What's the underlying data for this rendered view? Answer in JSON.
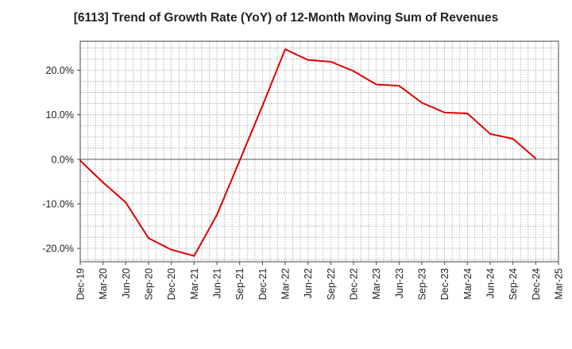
{
  "chart_data": {
    "type": "line",
    "title": "[6113]  Trend of Growth Rate (YoY) of 12-Month Moving Sum of Revenues",
    "xlabel": "",
    "ylabel": "",
    "ylim": [
      -23,
      26.5
    ],
    "y_ticks": [
      {
        "value": 20,
        "label": "20.0%"
      },
      {
        "value": 10,
        "label": "10.0%"
      },
      {
        "value": 0,
        "label": "0.0%"
      },
      {
        "value": -10,
        "label": "-10.0%"
      },
      {
        "value": -20,
        "label": "-20.0%"
      }
    ],
    "x_ticks": [
      "Dec-19",
      "Mar-20",
      "Jun-20",
      "Sep-20",
      "Dec-20",
      "Mar-21",
      "Jun-21",
      "Sep-21",
      "Dec-21",
      "Mar-22",
      "Jun-22",
      "Sep-22",
      "Dec-22",
      "Mar-23",
      "Jun-23",
      "Sep-23",
      "Dec-23",
      "Mar-24",
      "Jun-24",
      "Sep-24",
      "Dec-24",
      "Mar-25"
    ],
    "grid": true,
    "line_color": "#dd0000",
    "series": [
      {
        "name": "",
        "values": [
          -0.3,
          -5.2,
          -9.7,
          -17.7,
          -20.3,
          -21.7,
          -12.5,
          -0.3,
          12.0,
          24.7,
          22.3,
          21.9,
          19.8,
          16.8,
          16.5,
          12.7,
          10.5,
          10.3,
          5.7,
          4.6,
          0.2
        ]
      }
    ]
  }
}
